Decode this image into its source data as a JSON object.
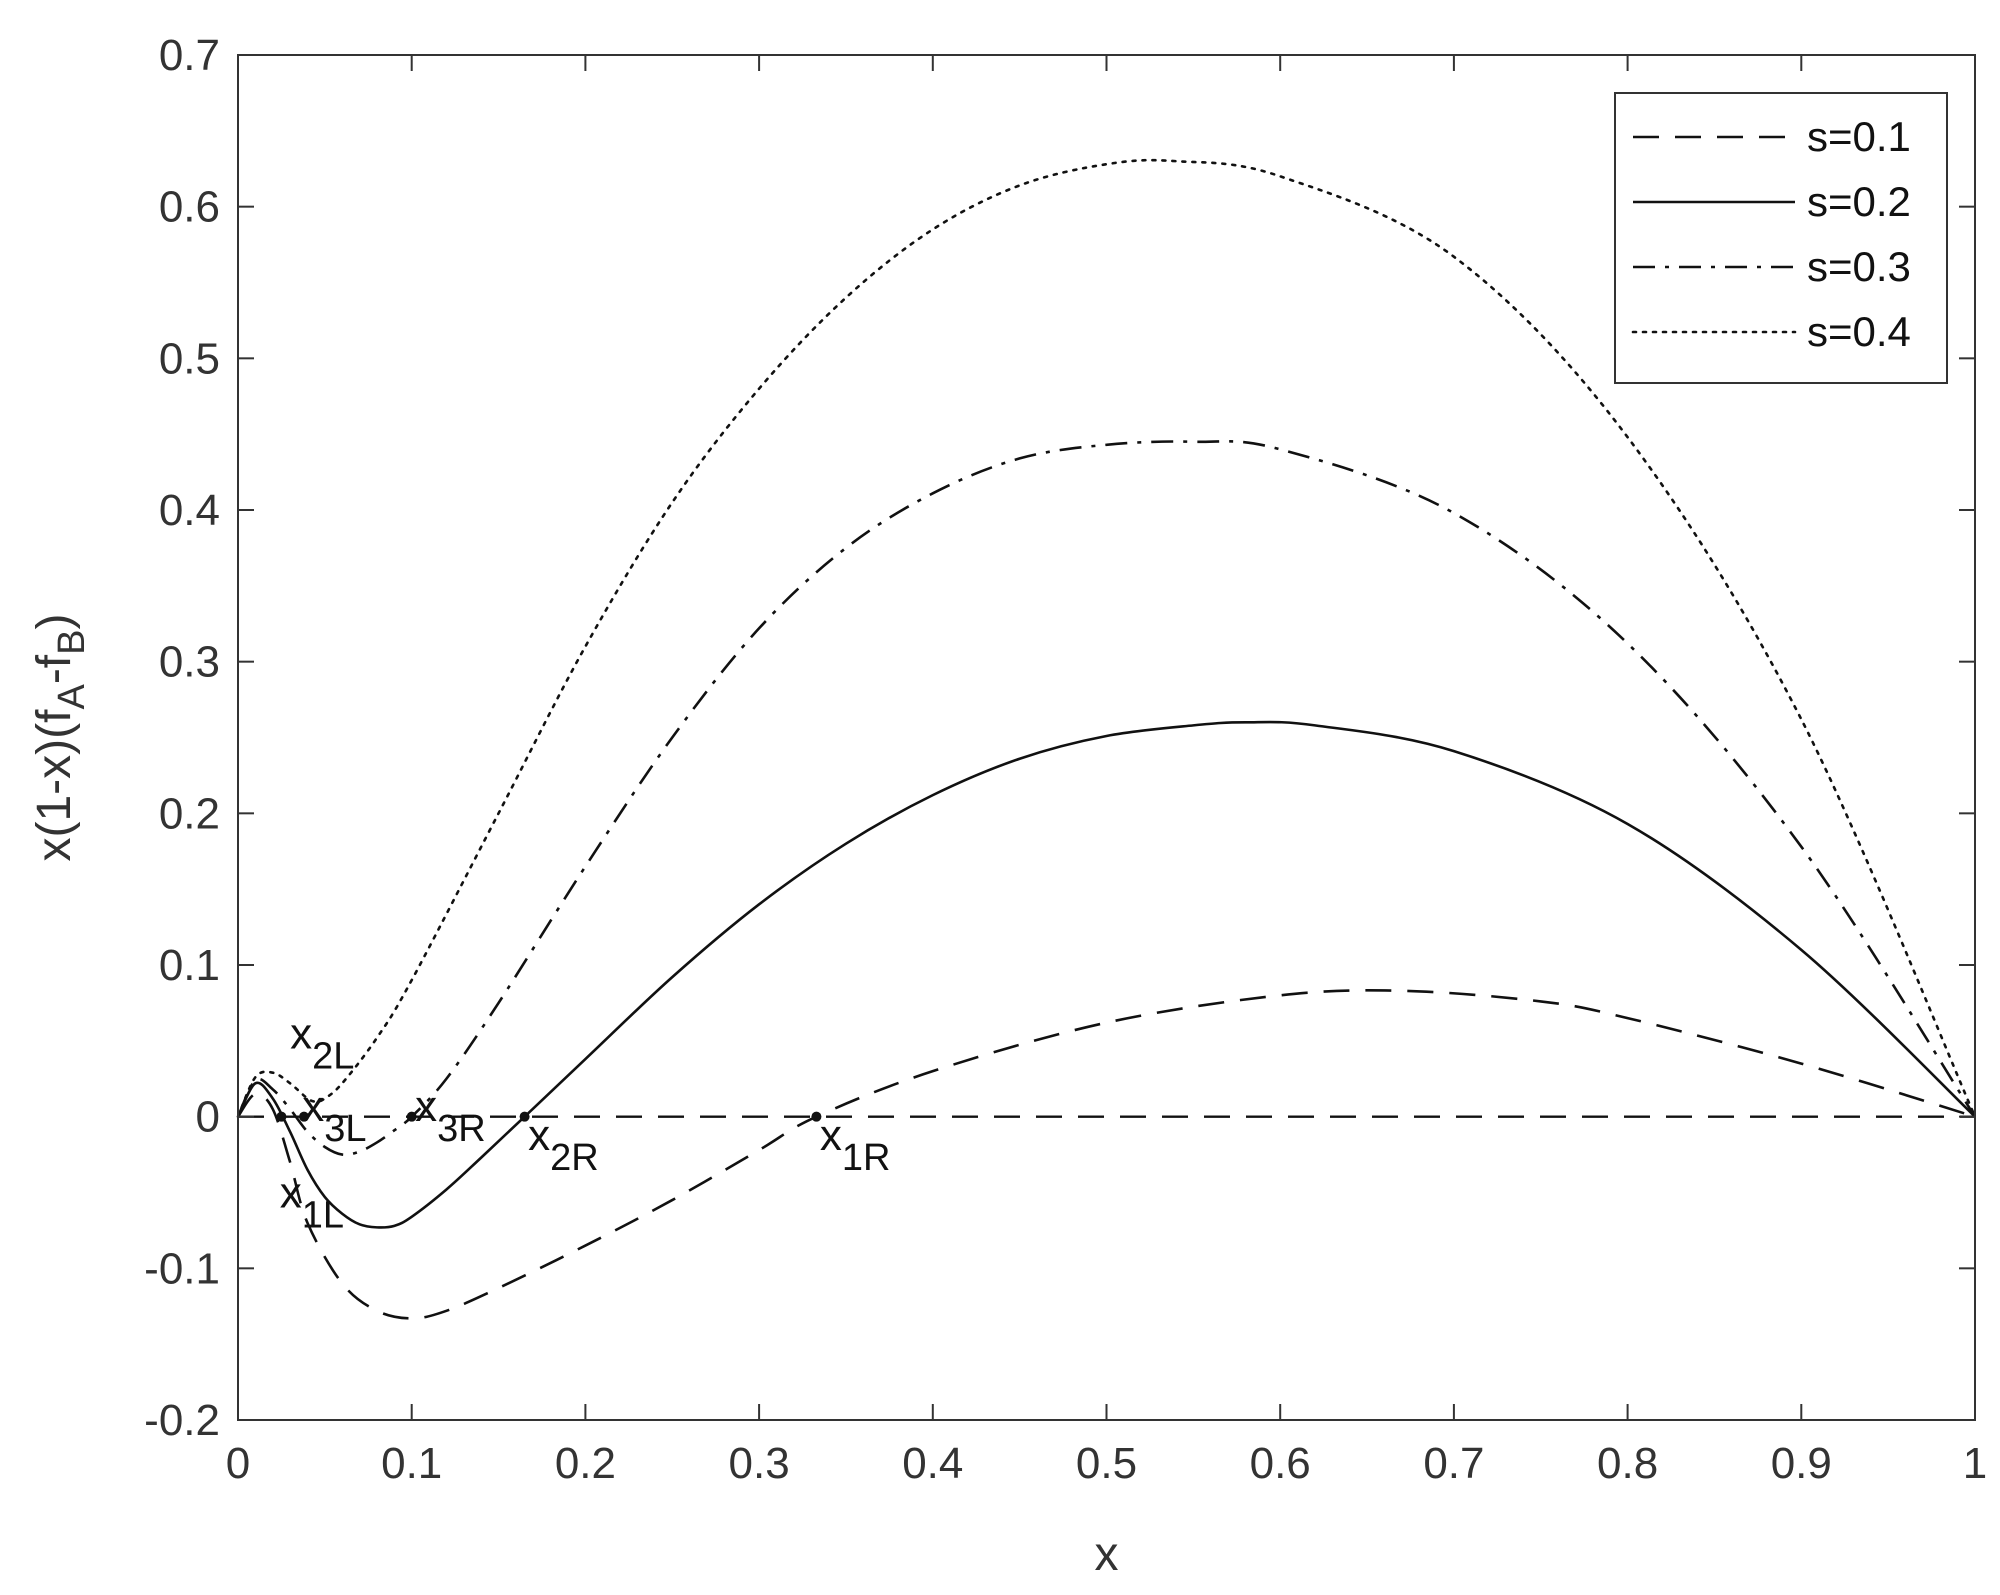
{
  "chart_data": {
    "type": "line",
    "xlabel": "x",
    "ylabel": {
      "main": "x(1-x)(f",
      "sub1": "A",
      "mid": "-f",
      "sub2": "B",
      "end": ")"
    },
    "xlim": [
      0,
      1
    ],
    "ylim": [
      -0.2,
      0.7
    ],
    "x_ticks": [
      0,
      0.1,
      0.2,
      0.3,
      0.4,
      0.5,
      0.6,
      0.7,
      0.8,
      0.9,
      1
    ],
    "x_tick_labels": [
      "0",
      "0.1",
      "0.2",
      "0.3",
      "0.4",
      "0.5",
      "0.6",
      "0.7",
      "0.8",
      "0.9",
      "1"
    ],
    "y_ticks": [
      -0.2,
      -0.1,
      0,
      0.1,
      0.2,
      0.3,
      0.4,
      0.5,
      0.6,
      0.7
    ],
    "y_tick_labels": [
      "-0.2",
      "-0.1",
      "0",
      "0.1",
      "0.2",
      "0.3",
      "0.4",
      "0.5",
      "0.6",
      "0.7"
    ],
    "grid": false,
    "legend_position": "top-right",
    "series": [
      {
        "name": "s=0.1",
        "dash": "dashed",
        "points": [
          [
            0,
            0
          ],
          [
            0.01,
            0.015
          ],
          [
            0.02,
            0.005
          ],
          [
            0.03,
            -0.03
          ],
          [
            0.04,
            -0.07
          ],
          [
            0.06,
            -0.11
          ],
          [
            0.08,
            -0.128
          ],
          [
            0.1,
            -0.133
          ],
          [
            0.12,
            -0.128
          ],
          [
            0.15,
            -0.113
          ],
          [
            0.2,
            -0.085
          ],
          [
            0.25,
            -0.055
          ],
          [
            0.3,
            -0.022
          ],
          [
            0.333,
            0
          ],
          [
            0.4,
            0.03
          ],
          [
            0.5,
            0.062
          ],
          [
            0.6,
            0.08
          ],
          [
            0.67,
            0.083
          ],
          [
            0.75,
            0.076
          ],
          [
            0.8,
            0.065
          ],
          [
            0.9,
            0.035
          ],
          [
            1,
            0
          ]
        ]
      },
      {
        "name": "s=0.2",
        "dash": "solid",
        "points": [
          [
            0,
            0
          ],
          [
            0.01,
            0.022
          ],
          [
            0.02,
            0.012
          ],
          [
            0.03,
            -0.01
          ],
          [
            0.04,
            -0.035
          ],
          [
            0.05,
            -0.053
          ],
          [
            0.06,
            -0.064
          ],
          [
            0.07,
            -0.071
          ],
          [
            0.08,
            -0.073
          ],
          [
            0.09,
            -0.072
          ],
          [
            0.1,
            -0.066
          ],
          [
            0.12,
            -0.048
          ],
          [
            0.14,
            -0.027
          ],
          [
            0.165,
            0
          ],
          [
            0.2,
            0.038
          ],
          [
            0.25,
            0.092
          ],
          [
            0.3,
            0.14
          ],
          [
            0.35,
            0.18
          ],
          [
            0.4,
            0.212
          ],
          [
            0.45,
            0.236
          ],
          [
            0.5,
            0.251
          ],
          [
            0.55,
            0.258
          ],
          [
            0.58,
            0.26
          ],
          [
            0.62,
            0.258
          ],
          [
            0.7,
            0.241
          ],
          [
            0.8,
            0.193
          ],
          [
            0.9,
            0.11
          ],
          [
            1,
            0
          ]
        ]
      },
      {
        "name": "s=0.3",
        "dash": "dashdot",
        "points": [
          [
            0,
            0
          ],
          [
            0.01,
            0.024
          ],
          [
            0.02,
            0.018
          ],
          [
            0.03,
            0.005
          ],
          [
            0.04,
            -0.01
          ],
          [
            0.05,
            -0.02
          ],
          [
            0.06,
            -0.025
          ],
          [
            0.07,
            -0.023
          ],
          [
            0.08,
            -0.017
          ],
          [
            0.09,
            -0.009
          ],
          [
            0.1,
            0
          ],
          [
            0.12,
            0.025
          ],
          [
            0.15,
            0.075
          ],
          [
            0.2,
            0.165
          ],
          [
            0.25,
            0.25
          ],
          [
            0.3,
            0.322
          ],
          [
            0.35,
            0.375
          ],
          [
            0.4,
            0.411
          ],
          [
            0.45,
            0.434
          ],
          [
            0.5,
            0.443
          ],
          [
            0.55,
            0.445
          ],
          [
            0.6,
            0.44
          ],
          [
            0.7,
            0.398
          ],
          [
            0.8,
            0.312
          ],
          [
            0.9,
            0.178
          ],
          [
            1,
            0
          ]
        ]
      },
      {
        "name": "s=0.4",
        "dash": "dotted",
        "points": [
          [
            0,
            0
          ],
          [
            0.01,
            0.026
          ],
          [
            0.02,
            0.029
          ],
          [
            0.03,
            0.022
          ],
          [
            0.04,
            0.012
          ],
          [
            0.045,
            0.01
          ],
          [
            0.05,
            0.012
          ],
          [
            0.06,
            0.022
          ],
          [
            0.08,
            0.052
          ],
          [
            0.1,
            0.09
          ],
          [
            0.15,
            0.2
          ],
          [
            0.2,
            0.31
          ],
          [
            0.25,
            0.405
          ],
          [
            0.3,
            0.48
          ],
          [
            0.35,
            0.54
          ],
          [
            0.4,
            0.585
          ],
          [
            0.45,
            0.614
          ],
          [
            0.5,
            0.628
          ],
          [
            0.54,
            0.63
          ],
          [
            0.6,
            0.62
          ],
          [
            0.7,
            0.567
          ],
          [
            0.8,
            0.448
          ],
          [
            0.9,
            0.262
          ],
          [
            1,
            0
          ]
        ]
      }
    ],
    "zero_line": {
      "y": 0,
      "dash": "dashed"
    },
    "marked_points": [
      {
        "x": 0.025,
        "y": 0
      },
      {
        "x": 0.038,
        "y": 0
      },
      {
        "x": 0.1,
        "y": 0
      },
      {
        "x": 0.165,
        "y": 0
      },
      {
        "x": 0.333,
        "y": 0
      }
    ],
    "annotations": [
      {
        "id": "x2L",
        "base": "x",
        "sub": "2L",
        "x": 0.03,
        "y": 0.045
      },
      {
        "id": "x3L",
        "base": "x",
        "sub": "3L",
        "x": 0.037,
        "y": -0.003
      },
      {
        "id": "x3R",
        "base": "x",
        "sub": "3R",
        "x": 0.102,
        "y": -0.003
      },
      {
        "id": "x2R",
        "base": "x",
        "sub": "2R",
        "x": 0.167,
        "y": -0.022
      },
      {
        "id": "x1R",
        "base": "x",
        "sub": "1R",
        "x": 0.335,
        "y": -0.022
      },
      {
        "id": "x1L",
        "base": "x",
        "sub": "1L",
        "x": 0.024,
        "y": -0.06
      }
    ]
  }
}
